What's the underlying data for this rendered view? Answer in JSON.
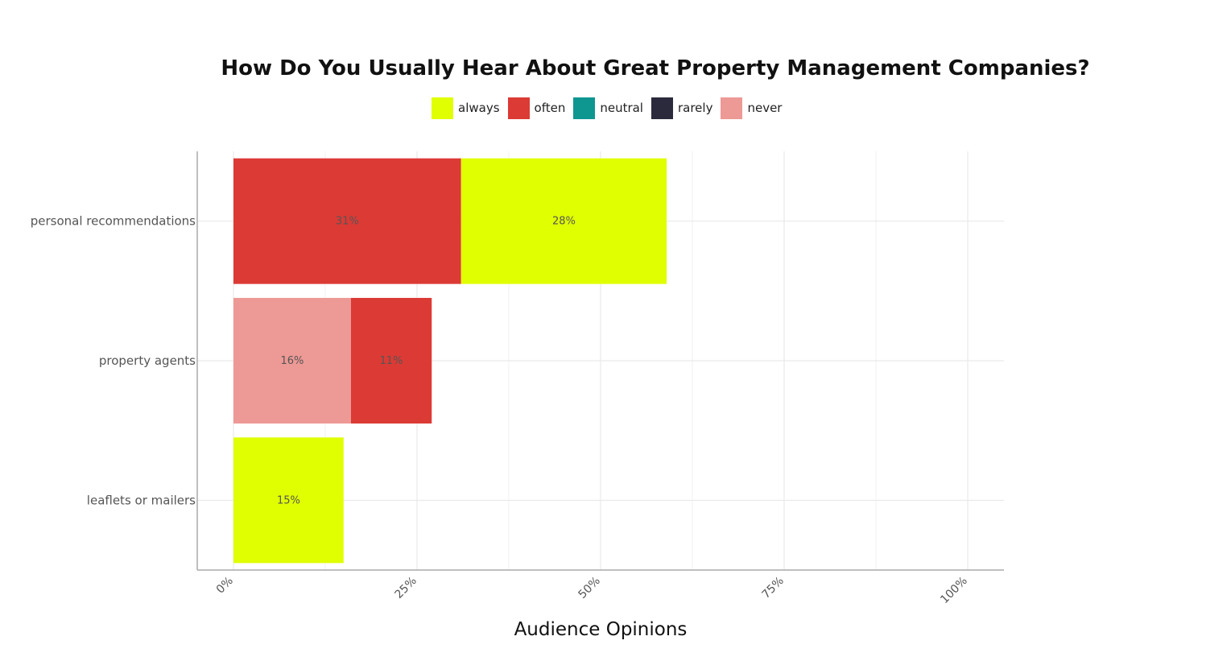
{
  "chart_data": {
    "type": "bar",
    "orientation": "horizontal",
    "stacked": true,
    "title": "How Do You Usually Hear About Great Property Management Companies?",
    "xlabel": "Audience Opinions",
    "ylabel": "",
    "xlim": [
      0,
      105
    ],
    "x_ticks": [
      "0%",
      "25%",
      "50%",
      "75%",
      "100%"
    ],
    "x_tick_values": [
      0,
      25,
      50,
      75,
      100
    ],
    "categories": [
      "personal recommendations",
      "property agents",
      "leaflets or mailers"
    ],
    "series": [
      {
        "name": "always",
        "color": "#e0ff00",
        "values": [
          28,
          null,
          15
        ]
      },
      {
        "name": "often",
        "color": "#dc3a35",
        "values": [
          31,
          11,
          null
        ]
      },
      {
        "name": "neutral",
        "color": "#0e9691",
        "values": [
          null,
          null,
          null
        ]
      },
      {
        "name": "rarely",
        "color": "#2a2a3c",
        "values": [
          null,
          null,
          null
        ]
      },
      {
        "name": "never",
        "color": "#ed9995",
        "values": [
          null,
          16,
          null
        ]
      }
    ],
    "stack_order": [
      [
        "often",
        "always"
      ],
      [
        "never",
        "often"
      ],
      [
        "always"
      ]
    ],
    "data_labels": [
      [
        "31%",
        "28%"
      ],
      [
        "16%",
        "11%"
      ],
      [
        "15%"
      ]
    ],
    "grid": true,
    "legend_position": "top"
  }
}
